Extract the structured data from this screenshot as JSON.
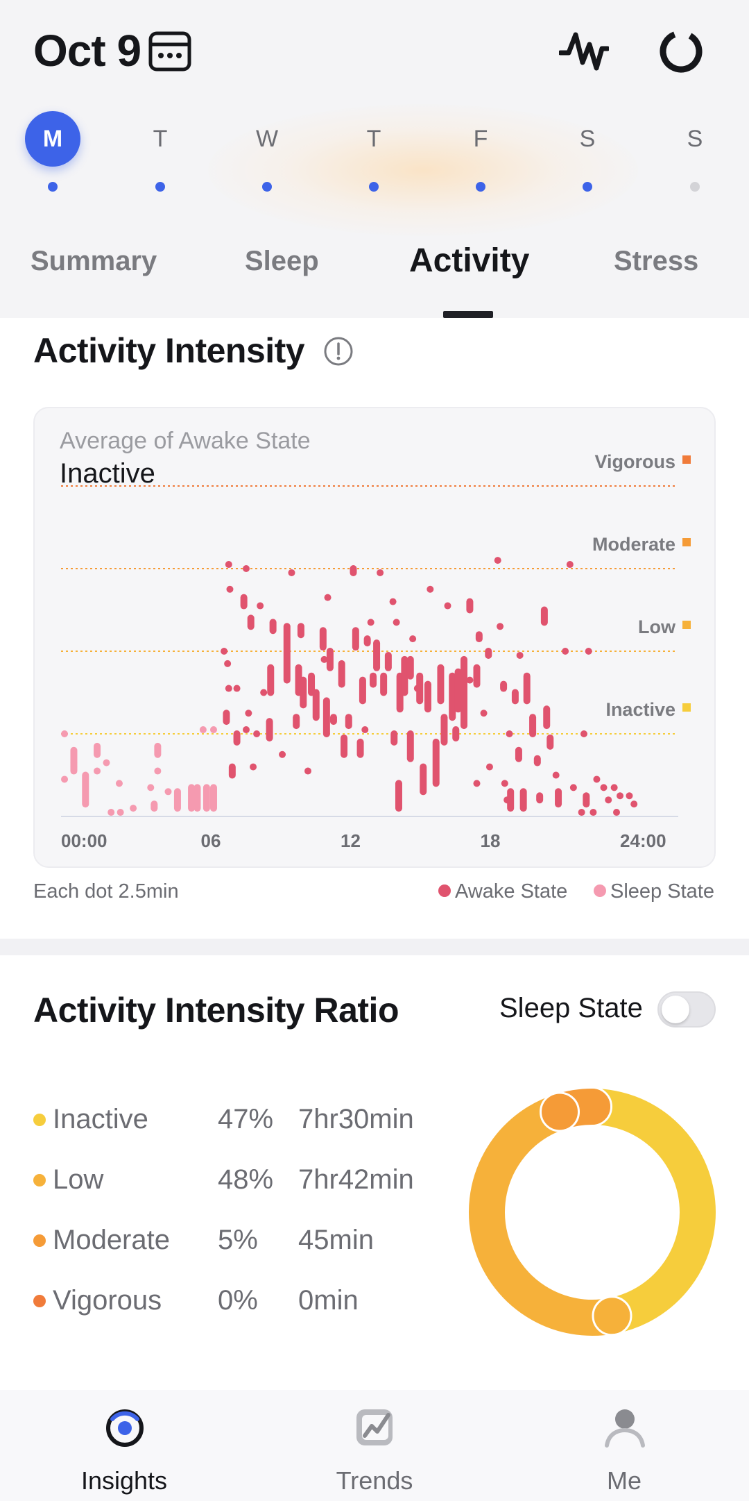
{
  "header": {
    "date": "Oct 9",
    "week": [
      {
        "letter": "M",
        "active": true,
        "has_data": true
      },
      {
        "letter": "T",
        "active": false,
        "has_data": true
      },
      {
        "letter": "W",
        "active": false,
        "has_data": true
      },
      {
        "letter": "T",
        "active": false,
        "has_data": true
      },
      {
        "letter": "F",
        "active": false,
        "has_data": true
      },
      {
        "letter": "S",
        "active": false,
        "has_data": true
      },
      {
        "letter": "S",
        "active": false,
        "has_data": false
      }
    ],
    "tabs": [
      "Summary",
      "Sleep",
      "Activity",
      "Stress"
    ],
    "active_tab": "Activity",
    "icons": {
      "calendar": "calendar-icon",
      "pulse": "pulse-icon",
      "ring": "ring-icon"
    }
  },
  "intensity": {
    "title": "Activity Intensity",
    "avg_label": "Average of Awake State",
    "avg_value": "Inactive",
    "footnote": "Each dot 2.5min",
    "legend_awake": "Awake State",
    "legend_sleep": "Sleep State"
  },
  "chart_data": {
    "type": "scatter",
    "title": "",
    "x_ticks": [
      "00:00",
      "06",
      "12",
      "18",
      "24:00"
    ],
    "xlim": [
      0,
      26.5
    ],
    "levels": [
      "Inactive",
      "Low",
      "Moderate",
      "Vigorous"
    ],
    "level_colors": {
      "Inactive": "#f6cd3c",
      "Low": "#f6b13a",
      "Moderate": "#f59b37",
      "Vigorous": "#f07b3a"
    },
    "y_scale": "0 = baseline, 1 = Inactive line, 2 = Low line, 3 = Moderate line, 4 = Vigorous line",
    "colors": {
      "awake": "#e0536e",
      "sleep": "#f59ab0"
    },
    "series": [
      {
        "name": "Sleep State",
        "segments": [
          [
            0.15,
            0.45,
            0.45
          ],
          [
            0.15,
            1.0,
            1.0
          ],
          [
            0.55,
            0.6,
            0.6
          ],
          [
            0.55,
            0.55,
            0.8
          ],
          [
            0.55,
            0.65,
            0.65
          ],
          [
            1.05,
            0.15,
            0.5
          ],
          [
            1.55,
            0.55,
            0.55
          ],
          [
            1.55,
            0.75,
            0.85
          ],
          [
            1.95,
            0.65,
            0.65
          ],
          [
            2.15,
            0.05,
            0.05
          ],
          [
            2.5,
            0.4,
            0.4
          ],
          [
            2.55,
            0.05,
            0.05
          ],
          [
            3.1,
            0.1,
            0.1
          ],
          [
            3.85,
            0.35,
            0.35
          ],
          [
            4.0,
            0.1,
            0.15
          ],
          [
            4.15,
            0.55,
            0.55
          ],
          [
            4.15,
            0.75,
            0.85
          ],
          [
            4.6,
            0.3,
            0.3
          ],
          [
            5.0,
            0.1,
            0.3
          ],
          [
            5.6,
            0.1,
            0.35
          ],
          [
            5.85,
            0.1,
            0.35
          ],
          [
            6.25,
            0.1,
            0.35
          ],
          [
            6.1,
            1.05,
            1.05
          ],
          [
            6.55,
            1.05,
            1.05
          ],
          [
            6.55,
            0.1,
            0.35
          ]
        ]
      },
      {
        "name": "Awake State",
        "segments": [
          [
            7.1,
            1.15,
            1.25
          ],
          [
            7.0,
            2.0,
            2.0
          ],
          [
            7.15,
            1.85,
            1.85
          ],
          [
            7.2,
            1.55,
            1.55
          ],
          [
            7.2,
            3.05,
            3.05
          ],
          [
            7.25,
            2.75,
            2.75
          ],
          [
            7.35,
            0.5,
            0.6
          ],
          [
            7.55,
            0.9,
            1.0
          ],
          [
            7.55,
            1.55,
            1.55
          ],
          [
            7.85,
            2.55,
            2.65
          ],
          [
            7.95,
            1.05,
            1.05
          ],
          [
            8.05,
            1.25,
            1.25
          ],
          [
            7.95,
            3.0,
            3.0
          ],
          [
            8.15,
            2.3,
            2.4
          ],
          [
            8.25,
            0.6,
            0.6
          ],
          [
            8.4,
            1.0,
            1.0
          ],
          [
            8.55,
            2.55,
            2.55
          ],
          [
            8.7,
            1.5,
            1.5
          ],
          [
            8.95,
            0.95,
            1.15
          ],
          [
            9.0,
            1.5,
            1.8
          ],
          [
            9.1,
            2.25,
            2.35
          ],
          [
            9.5,
            0.75,
            0.75
          ],
          [
            9.7,
            1.65,
            2.3
          ],
          [
            9.9,
            2.95,
            2.95
          ],
          [
            10.1,
            1.1,
            1.2
          ],
          [
            10.2,
            1.5,
            1.8
          ],
          [
            10.3,
            2.2,
            2.3
          ],
          [
            10.4,
            1.35,
            1.65
          ],
          [
            10.6,
            0.55,
            0.55
          ],
          [
            10.75,
            1.5,
            1.7
          ],
          [
            10.95,
            1.2,
            1.5
          ],
          [
            11.25,
            2.05,
            2.25
          ],
          [
            11.3,
            1.9,
            1.9
          ],
          [
            11.4,
            1.0,
            1.4
          ],
          [
            11.45,
            2.65,
            2.65
          ],
          [
            11.55,
            1.8,
            2.0
          ],
          [
            11.7,
            1.15,
            1.2
          ],
          [
            12.05,
            1.6,
            1.85
          ],
          [
            12.15,
            0.75,
            0.95
          ],
          [
            12.35,
            1.1,
            1.2
          ],
          [
            12.55,
            2.95,
            3.0
          ],
          [
            12.65,
            2.05,
            2.25
          ],
          [
            12.85,
            0.75,
            0.9
          ],
          [
            12.95,
            1.4,
            1.65
          ],
          [
            13.05,
            1.05,
            1.05
          ],
          [
            13.15,
            2.1,
            2.15
          ],
          [
            13.3,
            2.35,
            2.35
          ],
          [
            13.4,
            1.6,
            1.7
          ],
          [
            13.55,
            1.8,
            2.1
          ],
          [
            13.7,
            2.95,
            2.95
          ],
          [
            13.85,
            1.5,
            1.7
          ],
          [
            14.05,
            1.8,
            1.95
          ],
          [
            14.25,
            2.6,
            2.6
          ],
          [
            14.3,
            0.9,
            1.0
          ],
          [
            14.4,
            2.35,
            2.35
          ],
          [
            14.5,
            0.1,
            0.4
          ],
          [
            14.55,
            1.3,
            1.7
          ],
          [
            14.75,
            1.5,
            1.9
          ],
          [
            15.0,
            0.7,
            1.0
          ],
          [
            15.0,
            1.7,
            1.9
          ],
          [
            15.1,
            2.15,
            2.15
          ],
          [
            15.3,
            1.55,
            1.55
          ],
          [
            15.4,
            1.4,
            1.7
          ],
          [
            15.55,
            0.3,
            0.6
          ],
          [
            15.75,
            1.3,
            1.6
          ],
          [
            15.85,
            2.75,
            2.75
          ],
          [
            16.1,
            0.4,
            0.9
          ],
          [
            16.3,
            1.4,
            1.8
          ],
          [
            16.45,
            0.9,
            1.2
          ],
          [
            16.6,
            2.55,
            2.55
          ],
          [
            16.8,
            1.2,
            1.7
          ],
          [
            16.95,
            0.95,
            1.05
          ],
          [
            17.05,
            1.3,
            1.75
          ],
          [
            17.3,
            1.1,
            1.9
          ],
          [
            17.55,
            1.65,
            1.65
          ],
          [
            17.55,
            2.5,
            2.6
          ],
          [
            17.85,
            0.4,
            0.4
          ],
          [
            17.85,
            1.6,
            1.8
          ],
          [
            17.95,
            2.15,
            2.2
          ],
          [
            18.15,
            1.25,
            1.25
          ],
          [
            18.35,
            1.95,
            2.0
          ],
          [
            18.4,
            0.6,
            0.6
          ],
          [
            18.75,
            3.1,
            3.1
          ],
          [
            18.85,
            2.3,
            2.3
          ],
          [
            19.0,
            1.55,
            1.6
          ],
          [
            19.05,
            0.4,
            0.4
          ],
          [
            19.15,
            0.2,
            0.2
          ],
          [
            19.25,
            1.0,
            1.0
          ],
          [
            19.3,
            0.1,
            0.3
          ],
          [
            19.5,
            1.4,
            1.5
          ],
          [
            19.65,
            0.7,
            0.8
          ],
          [
            19.7,
            1.95,
            1.95
          ],
          [
            19.85,
            0.1,
            0.3
          ],
          [
            20.0,
            1.4,
            1.7
          ],
          [
            20.25,
            1.0,
            1.2
          ],
          [
            20.45,
            0.65,
            0.7
          ],
          [
            20.55,
            0.2,
            0.25
          ],
          [
            20.75,
            2.35,
            2.5
          ],
          [
            20.85,
            1.1,
            1.3
          ],
          [
            21.0,
            0.85,
            0.95
          ],
          [
            21.25,
            0.5,
            0.5
          ],
          [
            21.35,
            0.15,
            0.3
          ],
          [
            21.65,
            2.0,
            2.0
          ],
          [
            21.85,
            3.05,
            3.05
          ],
          [
            22.0,
            0.35,
            0.35
          ],
          [
            22.35,
            0.05,
            0.05
          ],
          [
            22.45,
            1.0,
            1.0
          ],
          [
            22.55,
            0.15,
            0.25
          ],
          [
            22.65,
            2.0,
            2.0
          ],
          [
            22.85,
            0.05,
            0.05
          ],
          [
            23.0,
            0.45,
            0.45
          ],
          [
            23.3,
            0.35,
            0.35
          ],
          [
            23.5,
            0.2,
            0.2
          ],
          [
            23.85,
            0.05,
            0.05
          ],
          [
            23.75,
            0.35,
            0.35
          ],
          [
            24.0,
            0.25,
            0.25
          ],
          [
            24.4,
            0.25,
            0.25
          ],
          [
            24.6,
            0.15,
            0.15
          ]
        ]
      }
    ]
  },
  "ratio": {
    "title": "Activity Intensity Ratio",
    "toggle_label": "Sleep State",
    "toggle_on": false,
    "rows": [
      {
        "name": "Inactive",
        "pct": "47%",
        "duration": "7hr30min",
        "color": "#f6cd3c",
        "value": 47
      },
      {
        "name": "Low",
        "pct": "48%",
        "duration": "7hr42min",
        "color": "#f6b13a",
        "value": 48
      },
      {
        "name": "Moderate",
        "pct": "5%",
        "duration": "45min",
        "color": "#f59b37",
        "value": 5
      },
      {
        "name": "Vigorous",
        "pct": "0%",
        "duration": "0min",
        "color": "#f07b3a",
        "value": 0
      }
    ]
  },
  "nav": {
    "items": [
      {
        "label": "Insights",
        "icon": "insights-icon",
        "active": true
      },
      {
        "label": "Trends",
        "icon": "trends-icon",
        "active": false
      },
      {
        "label": "Me",
        "icon": "me-icon",
        "active": false
      }
    ]
  }
}
